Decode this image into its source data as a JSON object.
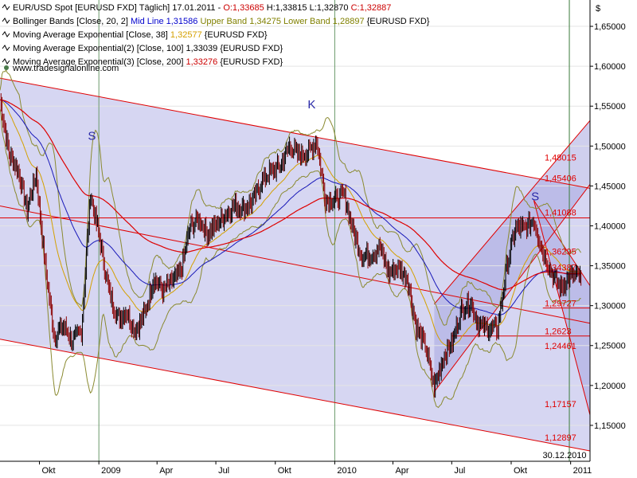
{
  "chart_data": {
    "type": "line",
    "title": "EUR/USD Spot [EURUSD FXD]",
    "currency_symbol": "$",
    "legend": [
      {
        "icon": "indicator-icon",
        "parts": [
          {
            "text": "EUR/USD Spot [EURUSD FXD]  Täglich] 17.01.2011 - ",
            "color": "#000000"
          },
          {
            "text": "O:1,33685 ",
            "color": "#cc0000"
          },
          {
            "text": "H:1,33815 ",
            "color": "#000000"
          },
          {
            "text": "L:1,32870 ",
            "color": "#000000"
          },
          {
            "text": "C:1,32887",
            "color": "#cc0000"
          }
        ]
      },
      {
        "icon": "indicator-icon",
        "parts": [
          {
            "text": "Bollinger Bands [Close, 20, 2] ",
            "color": "#000000"
          },
          {
            "text": "Mid Line 1,31586 ",
            "color": "#0000cc"
          },
          {
            "text": "Upper Band 1,34275 ",
            "color": "#808000"
          },
          {
            "text": "Lower Band 1,28897 ",
            "color": "#808000"
          },
          {
            "text": "{EURUSD FXD}",
            "color": "#000000"
          }
        ]
      },
      {
        "icon": "indicator-icon",
        "parts": [
          {
            "text": "Moving Average Exponential [Close, 38] ",
            "color": "#000000"
          },
          {
            "text": "1,32577 ",
            "color": "#d4a000"
          },
          {
            "text": "{EURUSD FXD}",
            "color": "#000000"
          }
        ]
      },
      {
        "icon": "indicator-icon",
        "parts": [
          {
            "text": "Moving Average Exponential(2) [Close, 100] ",
            "color": "#000000"
          },
          {
            "text": "1,33039 ",
            "color": "#000000"
          },
          {
            "text": "{EURUSD FXD}",
            "color": "#000000"
          }
        ]
      },
      {
        "icon": "indicator-icon",
        "parts": [
          {
            "text": "Moving Average Exponential(3) [Close, 200] ",
            "color": "#000000"
          },
          {
            "text": "1,33276 ",
            "color": "#cc0000"
          },
          {
            "text": "{EURUSD FXD}",
            "color": "#000000"
          }
        ]
      }
    ],
    "watermark": "www.tradesignalonline.com",
    "y_axis": {
      "min": 1.105,
      "max": 1.683,
      "position": "right",
      "ticks": [
        "1,15000",
        "1,20000",
        "1,25000",
        "1,30000",
        "1,35000",
        "1,40000",
        "1,45000",
        "1,50000",
        "1,55000",
        "1,60000",
        "1,65000"
      ],
      "tick_values": [
        1.15,
        1.2,
        1.25,
        1.3,
        1.35,
        1.4,
        1.45,
        1.5,
        1.55,
        1.6,
        1.65
      ]
    },
    "x_axis": {
      "start": "2008-08-01",
      "end": "2011-01-31",
      "type": "date",
      "ticks": [
        {
          "label": "Okt",
          "date": "2008-10-01"
        },
        {
          "label": "2009",
          "date": "2009-01-01"
        },
        {
          "label": "Apr",
          "date": "2009-04-01"
        },
        {
          "label": "Jul",
          "date": "2009-07-01"
        },
        {
          "label": "Okt",
          "date": "2009-10-01"
        },
        {
          "label": "2010",
          "date": "2010-01-01"
        },
        {
          "label": "Apr",
          "date": "2010-04-01"
        },
        {
          "label": "Jul",
          "date": "2010-07-01"
        },
        {
          "label": "Okt",
          "date": "2010-10-01"
        },
        {
          "label": "2011",
          "date": "2011-01-01"
        }
      ]
    },
    "grid": true,
    "colors": {
      "price": "#000000",
      "price_up": "#000000",
      "boll": "#8a8a30",
      "ema38": "#d4a000",
      "ema100": "#1818b8",
      "ema200": "#dd0000",
      "channel_line": "#e00000",
      "channel_fill": "#c8c8ee",
      "label": "#e00000",
      "pattern": "#2a2aa8",
      "vline": "#6a9a6a"
    },
    "close_series": [
      [
        "2008-08-01",
        1.558
      ],
      [
        "2008-08-15",
        1.49
      ],
      [
        "2008-08-29",
        1.47
      ],
      [
        "2008-09-12",
        1.42
      ],
      [
        "2008-09-26",
        1.465
      ],
      [
        "2008-10-10",
        1.35
      ],
      [
        "2008-10-24",
        1.26
      ],
      [
        "2008-11-07",
        1.275
      ],
      [
        "2008-11-21",
        1.255
      ],
      [
        "2008-12-05",
        1.268
      ],
      [
        "2008-12-19",
        1.44
      ],
      [
        "2009-01-02",
        1.385
      ],
      [
        "2009-01-16",
        1.32
      ],
      [
        "2009-01-30",
        1.285
      ],
      [
        "2009-02-13",
        1.292
      ],
      [
        "2009-02-27",
        1.268
      ],
      [
        "2009-03-13",
        1.29
      ],
      [
        "2009-03-27",
        1.335
      ],
      [
        "2009-04-10",
        1.318
      ],
      [
        "2009-04-24",
        1.33
      ],
      [
        "2009-05-08",
        1.342
      ],
      [
        "2009-05-22",
        1.398
      ],
      [
        "2009-06-05",
        1.408
      ],
      [
        "2009-06-19",
        1.39
      ],
      [
        "2009-07-03",
        1.402
      ],
      [
        "2009-07-17",
        1.415
      ],
      [
        "2009-07-31",
        1.425
      ],
      [
        "2009-08-14",
        1.422
      ],
      [
        "2009-08-28",
        1.432
      ],
      [
        "2009-09-11",
        1.458
      ],
      [
        "2009-09-25",
        1.468
      ],
      [
        "2009-10-09",
        1.475
      ],
      [
        "2009-10-23",
        1.5
      ],
      [
        "2009-11-06",
        1.488
      ],
      [
        "2009-11-20",
        1.492
      ],
      [
        "2009-12-04",
        1.505
      ],
      [
        "2009-12-18",
        1.433
      ],
      [
        "2010-01-01",
        1.432
      ],
      [
        "2010-01-15",
        1.44
      ],
      [
        "2010-01-29",
        1.395
      ],
      [
        "2010-02-12",
        1.362
      ],
      [
        "2010-02-26",
        1.363
      ],
      [
        "2010-03-12",
        1.374
      ],
      [
        "2010-03-26",
        1.34
      ],
      [
        "2010-04-09",
        1.347
      ],
      [
        "2010-04-23",
        1.335
      ],
      [
        "2010-05-07",
        1.273
      ],
      [
        "2010-05-21",
        1.25
      ],
      [
        "2010-06-04",
        1.197
      ],
      [
        "2010-06-18",
        1.236
      ],
      [
        "2010-07-02",
        1.254
      ],
      [
        "2010-07-16",
        1.294
      ],
      [
        "2010-07-30",
        1.305
      ],
      [
        "2010-08-13",
        1.275
      ],
      [
        "2010-08-27",
        1.272
      ],
      [
        "2010-09-10",
        1.271
      ],
      [
        "2010-09-24",
        1.348
      ],
      [
        "2010-10-08",
        1.398
      ],
      [
        "2010-10-22",
        1.396
      ],
      [
        "2010-11-05",
        1.407
      ],
      [
        "2010-11-19",
        1.368
      ],
      [
        "2010-12-03",
        1.34
      ],
      [
        "2010-12-17",
        1.322
      ],
      [
        "2010-12-31",
        1.337
      ],
      [
        "2011-01-14",
        1.338
      ],
      [
        "2011-01-17",
        1.329
      ]
    ],
    "lines": [
      {
        "name": "channel-upper",
        "color": "#e00000",
        "points": [
          [
            "2008-08-01",
            1.585
          ],
          [
            "2011-01-31",
            1.447
          ]
        ]
      },
      {
        "name": "channel-lower",
        "color": "#e00000",
        "points": [
          [
            "2008-08-01",
            1.258
          ],
          [
            "2011-01-31",
            1.118
          ]
        ]
      },
      {
        "name": "channel-mid",
        "color": "#e00000",
        "points": [
          [
            "2008-08-01",
            1.425
          ],
          [
            "2011-01-31",
            1.278
          ]
        ]
      },
      {
        "name": "level-14109",
        "color": "#e00000",
        "points": [
          [
            "2008-08-01",
            1.41
          ],
          [
            "2011-01-31",
            1.41
          ]
        ]
      },
      {
        "name": "up-channel-lower",
        "color": "#e00000",
        "points": [
          [
            "2010-06-04",
            1.192
          ],
          [
            "2011-01-31",
            1.452
          ]
        ]
      },
      {
        "name": "up-channel-upper",
        "color": "#e00000",
        "points": [
          [
            "2010-06-04",
            1.302
          ],
          [
            "2011-01-31",
            1.532
          ]
        ]
      },
      {
        "name": "down-fan-1",
        "color": "#e00000",
        "points": [
          [
            "2010-11-05",
            1.432
          ],
          [
            "2011-01-31",
            1.325
          ]
        ]
      },
      {
        "name": "down-fan-2",
        "color": "#e00000",
        "points": [
          [
            "2010-11-05",
            1.432
          ],
          [
            "2011-01-31",
            1.163
          ]
        ]
      },
      {
        "name": "level-13",
        "color": "#e00000",
        "points": [
          [
            "2010-11-19",
            1.297
          ],
          [
            "2011-01-31",
            1.297
          ]
        ]
      },
      {
        "name": "level-126",
        "color": "#e00000",
        "points": [
          [
            "2010-07-01",
            1.262
          ],
          [
            "2011-01-31",
            1.262
          ]
        ]
      }
    ],
    "level_labels": [
      "1,48015",
      "1,45406",
      "1,41088",
      "1,36295",
      "1,34387",
      "1,29727",
      "1,2623",
      "1,24461",
      "1,17157",
      "1,12897"
    ],
    "level_values": [
      1.48,
      1.454,
      1.411,
      1.362,
      1.342,
      1.297,
      1.262,
      1.244,
      1.171,
      1.129
    ],
    "pattern_labels": [
      {
        "text": "S",
        "date": "2008-12-15",
        "value": 1.508
      },
      {
        "text": "K",
        "date": "2009-11-20",
        "value": 1.547
      },
      {
        "text": "S",
        "date": "2010-11-01",
        "value": 1.432
      }
    ],
    "vertical_markers": [
      {
        "date": "2009-01-01",
        "color": "#6a9a6a"
      },
      {
        "date": "2010-01-01",
        "color": "#6a9a6a"
      },
      {
        "date": "2010-12-30",
        "color": "#3a7a3a"
      }
    ],
    "date_marker_label": "30.12.2010"
  }
}
